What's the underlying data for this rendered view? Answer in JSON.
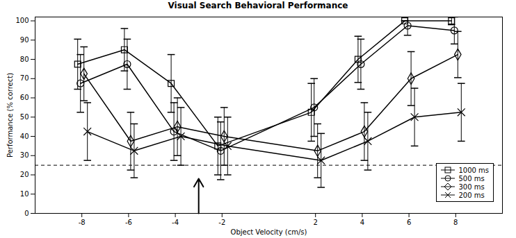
{
  "chart_data": {
    "type": "line",
    "title": "Visual Search Behavioral Performance",
    "x_label": "Object Velocity (cm/s)",
    "y_label": "Performance (% correct)",
    "x": [
      -8,
      -6,
      -4,
      -2,
      2,
      4,
      6,
      8
    ],
    "xlim": [
      -10,
      10
    ],
    "xticks": [
      -8,
      -6,
      -4,
      -2,
      2,
      4,
      6,
      8
    ],
    "ylim": [
      0,
      102
    ],
    "yticks": [
      0,
      10,
      20,
      30,
      40,
      50,
      60,
      70,
      80,
      90,
      100
    ],
    "legend": "lower right",
    "series": [
      {
        "name": "1000 ms",
        "color": "#000000",
        "marker": "square",
        "line_style": "solid",
        "values": [
          77.5,
          85,
          67.5,
          35,
          52.5,
          80,
          100,
          100
        ],
        "error": [
          13,
          11,
          15,
          15,
          15,
          12,
          0,
          2
        ]
      },
      {
        "name": "500 ms",
        "color": "#000000",
        "marker": "circle",
        "line_style": "solid",
        "values": [
          67.5,
          77.5,
          42.5,
          32.5,
          55,
          77.5,
          97.5,
          95
        ],
        "error": [
          15,
          13,
          15,
          15,
          15,
          13,
          5,
          7
        ]
      },
      {
        "name": "300 ms",
        "color": "#000000",
        "marker": "diamond",
        "line_style": "solid",
        "values": [
          72.5,
          37.5,
          45,
          40,
          32.5,
          42.5,
          70,
          82.5
        ],
        "error": [
          14,
          15,
          15,
          15,
          14,
          15,
          14,
          12
        ]
      },
      {
        "name": "200 ms",
        "color": "#000000",
        "marker": "x",
        "line_style": "solid",
        "values": [
          42.5,
          32.5,
          40,
          35,
          27.5,
          37.5,
          50,
          52.5
        ],
        "error": [
          15,
          14,
          15,
          15,
          14,
          15,
          15,
          15
        ]
      }
    ],
    "hline": {
      "value": 25,
      "line_style": "dashed",
      "color": "#000000"
    },
    "arrow": {
      "x": -3,
      "y": [
        0,
        18
      ],
      "color": "#000000"
    }
  }
}
